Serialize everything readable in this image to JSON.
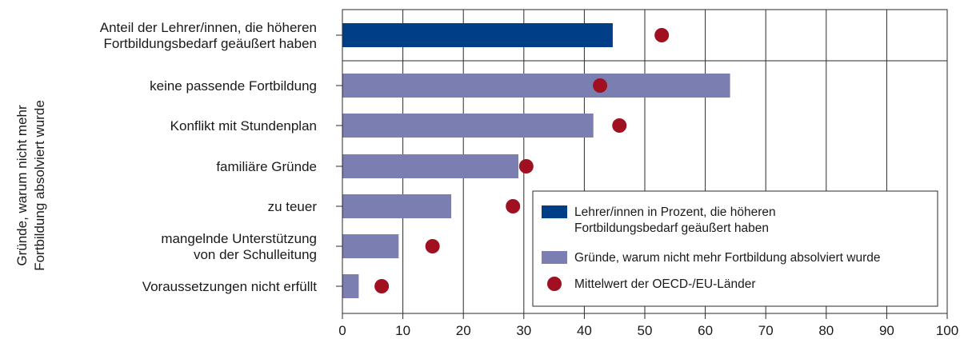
{
  "chart_data": {
    "type": "bar",
    "orientation": "horizontal",
    "title": "",
    "xlabel": "",
    "ylabel": "Gründe, warum nicht mehr Fortbildung absolviert wurde",
    "xlim": [
      0,
      100
    ],
    "xticks": [
      "0",
      "10",
      "20",
      "30",
      "40",
      "50",
      "60",
      "70",
      "80",
      "90",
      "100"
    ],
    "grid": true,
    "legend_position": "bottom-right",
    "categories": [
      [
        "Anteil der Lehrer/innen, die höheren",
        "Fortbildungsbedarf geäußert haben"
      ],
      [
        "keine passende Fortbildung"
      ],
      [
        "Konflikt mit Stundenplan"
      ],
      [
        "familiäre Gründe"
      ],
      [
        "zu teuer"
      ],
      [
        "mangelnde Unterstützung",
        "von der Schulleitung"
      ],
      [
        "Voraussetzungen nicht erfüllt"
      ]
    ],
    "series": [
      {
        "legend": [
          "Lehrer/innen in Prozent, die höheren",
          "Fortbildungsbedarf geäußert haben"
        ],
        "kind": "bar",
        "color": "#003f87",
        "values": [
          44.7,
          null,
          null,
          null,
          null,
          null,
          null
        ]
      },
      {
        "legend": [
          "Gründe, warum nicht mehr Fortbildung absolviert wurde"
        ],
        "kind": "bar",
        "color": "#7b7eb0",
        "values": [
          null,
          64.1,
          41.5,
          29.1,
          18.0,
          9.3,
          2.7
        ]
      },
      {
        "legend": [
          "Mittelwert der OECD-/EU-Länder"
        ],
        "kind": "point",
        "color": "#a01020",
        "values": [
          52.8,
          42.6,
          45.8,
          30.4,
          28.2,
          14.9,
          6.5
        ]
      }
    ]
  }
}
